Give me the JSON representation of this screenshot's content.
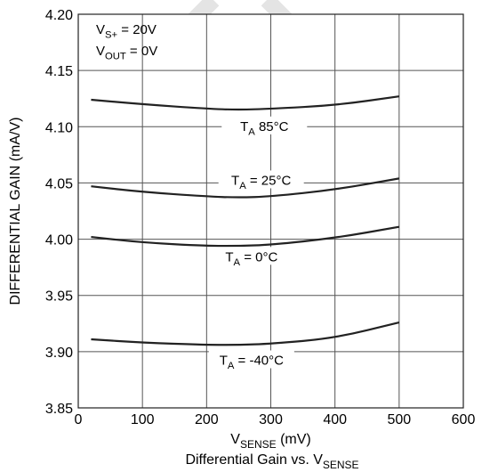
{
  "chart_data": {
    "type": "line",
    "title": "Differential Gain vs. V",
    "title_sub": "SENSE",
    "xlabel": "V",
    "xlabel_sub": "SENSE",
    "xlabel_unit": " (mV)",
    "ylabel": "DIFFERENTIAL GAIN (mA/V)",
    "xlim": [
      0,
      600
    ],
    "ylim": [
      3.85,
      4.2
    ],
    "x_ticks": [
      0,
      100,
      200,
      300,
      400,
      500,
      600
    ],
    "y_ticks": [
      3.85,
      3.9,
      3.95,
      4.0,
      4.05,
      4.1,
      4.15,
      4.2
    ],
    "y_tick_labels": [
      "3.85",
      "3.90",
      "3.95",
      "4.00",
      "4.05",
      "4.10",
      "4.15",
      "4.20"
    ],
    "grid": true,
    "line_color": "#222222",
    "conditions": [
      {
        "main": "V",
        "sub": "S+",
        "rest": " = 20V"
      },
      {
        "main": "V",
        "sub": "OUT",
        "rest": " = 0V"
      }
    ],
    "series": [
      {
        "name": "T_A 85°C",
        "label_main": "T",
        "label_sub": "A",
        "label_rest": " 85°C",
        "label_at": [
          290,
          4.098
        ],
        "x": [
          20,
          100,
          200,
          250,
          300,
          400,
          500
        ],
        "y": [
          4.124,
          4.12,
          4.116,
          4.115,
          4.116,
          4.119,
          4.127
        ]
      },
      {
        "name": "T_A = 25°C",
        "label_main": "T",
        "label_sub": "A",
        "label_rest": " = 25°C",
        "label_at": [
          285,
          4.05
        ],
        "x": [
          20,
          100,
          200,
          250,
          300,
          400,
          500
        ],
        "y": [
          4.047,
          4.042,
          4.038,
          4.037,
          4.038,
          4.044,
          4.054
        ]
      },
      {
        "name": "T_A = 0°C",
        "label_main": "T",
        "label_sub": "A",
        "label_rest": " = 0°C",
        "label_at": [
          270,
          3.982
        ],
        "x": [
          20,
          100,
          200,
          250,
          300,
          400,
          500
        ],
        "y": [
          4.002,
          3.997,
          3.994,
          3.994,
          3.995,
          4.001,
          4.011
        ]
      },
      {
        "name": "T_A = -40°C",
        "label_main": "T",
        "label_sub": "A",
        "label_rest": " = -40°C",
        "label_at": [
          270,
          3.89
        ],
        "x": [
          20,
          100,
          200,
          250,
          300,
          400,
          500
        ],
        "y": [
          3.911,
          3.908,
          3.906,
          3.906,
          3.907,
          3.912,
          3.926
        ]
      }
    ]
  }
}
